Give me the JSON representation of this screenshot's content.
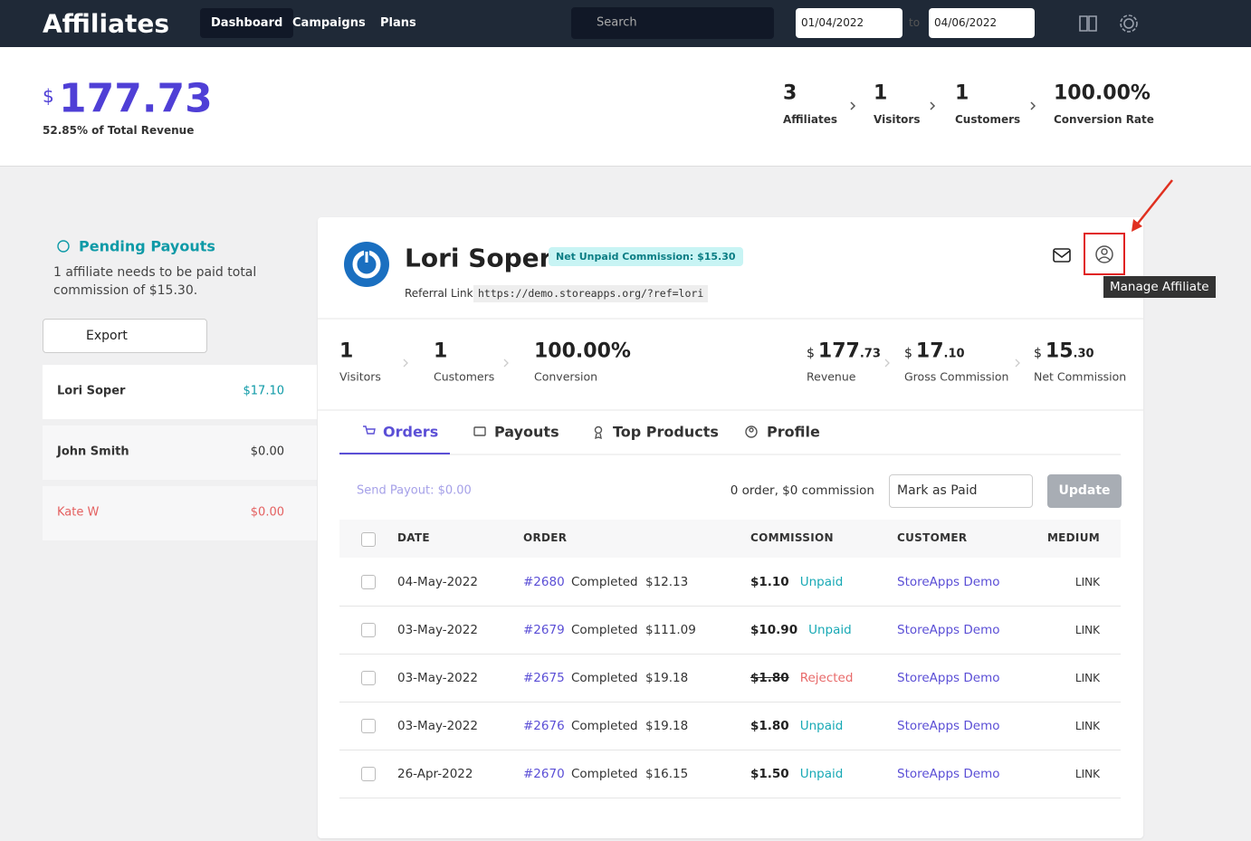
{
  "header": {
    "title": "Affiliates",
    "nav": [
      "Dashboard",
      "Campaigns",
      "Plans"
    ],
    "search_placeholder": "Search",
    "date_from": "01/04/2022",
    "date_separator": "to",
    "date_to": "04/06/2022"
  },
  "summary": {
    "currency": "$",
    "amount": "177.73",
    "note": "52.85% of Total Revenue",
    "stats": [
      {
        "value": "3",
        "label": "Affiliates"
      },
      {
        "value": "1",
        "label": "Visitors"
      },
      {
        "value": "1",
        "label": "Customers"
      },
      {
        "value": "100.00%",
        "label": "Conversion Rate"
      }
    ]
  },
  "pending": {
    "title": "Pending Payouts",
    "text": "1 affiliate needs to be paid total commission of $15.30.",
    "export": "Export",
    "affiliates": [
      {
        "name": "Lori Soper",
        "amount": "$17.10"
      },
      {
        "name": "John Smith",
        "amount": "$0.00"
      },
      {
        "name": "Kate W",
        "amount": "$0.00"
      }
    ]
  },
  "detail": {
    "name": "Lori Soper",
    "badge": "Net Unpaid Commission: $15.30",
    "referral_label": "Referral Link:",
    "referral_url": "https://demo.storeapps.org/?ref=lori",
    "tooltip": "Manage Affiliate",
    "stats_left": [
      {
        "value": "1",
        "label": "Visitors"
      },
      {
        "value": "1",
        "label": "Customers"
      },
      {
        "value": "100.00%",
        "label": "Conversion"
      }
    ],
    "stats_right": [
      {
        "currency": "$",
        "whole": "177",
        "fraction": ".73",
        "label": "Revenue"
      },
      {
        "currency": "$",
        "whole": "17",
        "fraction": ".10",
        "label": "Gross Commission"
      },
      {
        "currency": "$",
        "whole": "15",
        "fraction": ".30",
        "label": "Net Commission"
      }
    ],
    "tabs": [
      "Orders",
      "Payouts",
      "Top Products",
      "Profile"
    ],
    "send_payout": "Send Payout: $0.00",
    "order_summary": "0 order, $0 commission",
    "action": "Mark as Paid",
    "update": "Update",
    "table": {
      "columns": [
        "DATE",
        "ORDER",
        "COMMISSION",
        "CUSTOMER",
        "MEDIUM"
      ],
      "rows": [
        {
          "date": "04-May-2022",
          "order": "#2680",
          "status": "Completed",
          "total": "$12.13",
          "commission": "$1.10",
          "commission_status": "Unpaid",
          "customer": "StoreApps Demo",
          "medium": "LINK"
        },
        {
          "date": "03-May-2022",
          "order": "#2679",
          "status": "Completed",
          "total": "$111.09",
          "commission": "$10.90",
          "commission_status": "Unpaid",
          "customer": "StoreApps Demo",
          "medium": "LINK"
        },
        {
          "date": "03-May-2022",
          "order": "#2675",
          "status": "Completed",
          "total": "$19.18",
          "commission": "$1.80",
          "commission_status": "Rejected",
          "customer": "StoreApps Demo",
          "medium": "LINK"
        },
        {
          "date": "03-May-2022",
          "order": "#2676",
          "status": "Completed",
          "total": "$19.18",
          "commission": "$1.80",
          "commission_status": "Unpaid",
          "customer": "StoreApps Demo",
          "medium": "LINK"
        },
        {
          "date": "26-Apr-2022",
          "order": "#2670",
          "status": "Completed",
          "total": "$16.15",
          "commission": "$1.50",
          "commission_status": "Unpaid",
          "customer": "StoreApps Demo",
          "medium": "LINK"
        }
      ]
    }
  }
}
